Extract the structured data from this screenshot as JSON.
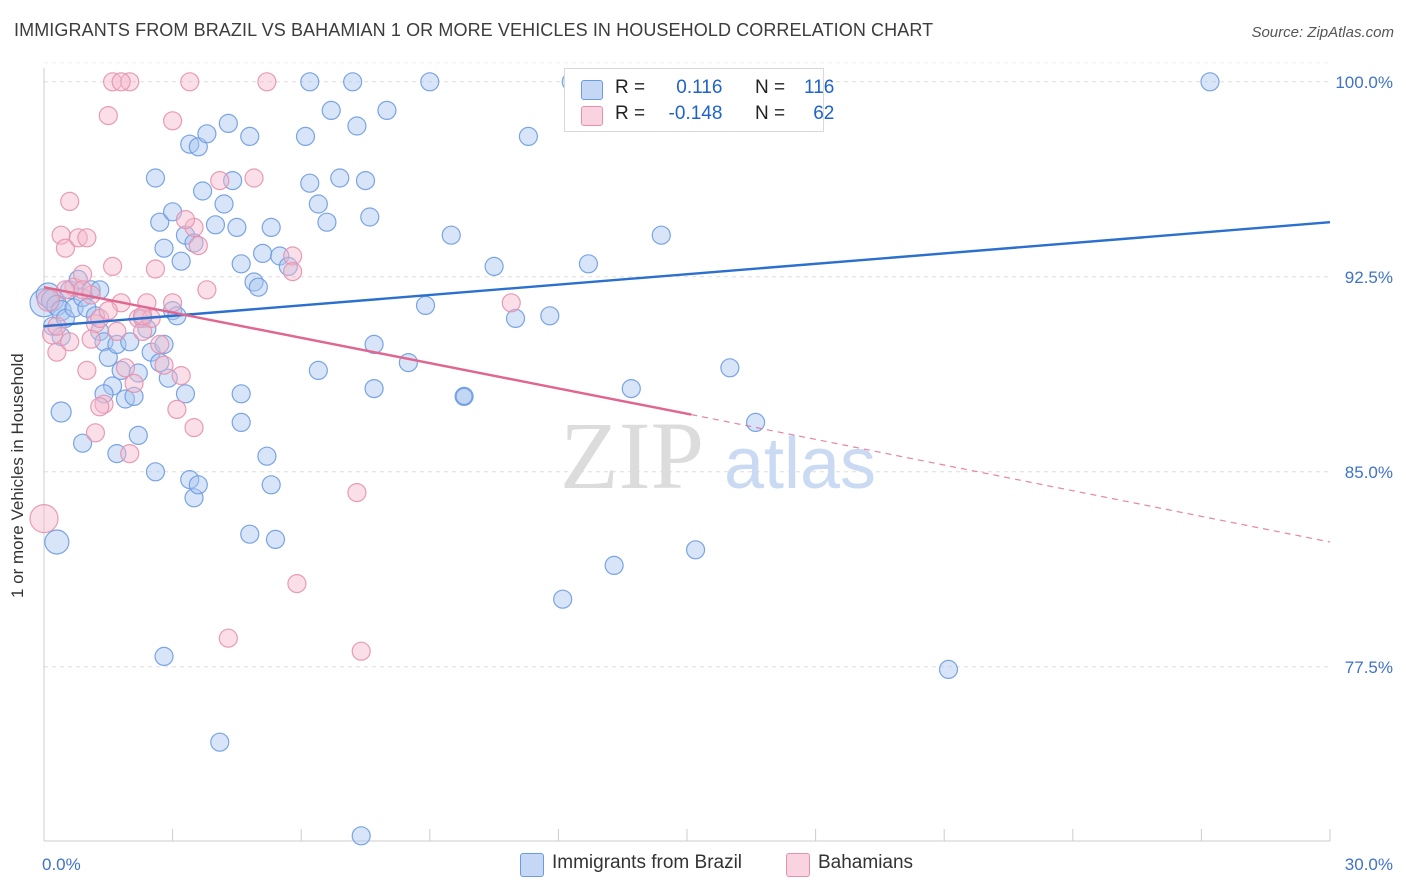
{
  "title": "IMMIGRANTS FROM BRAZIL VS BAHAMIAN 1 OR MORE VEHICLES IN HOUSEHOLD CORRELATION CHART",
  "source": "Source: ZipAtlas.com",
  "watermark": {
    "zip": "ZIP",
    "atlas": "atlas"
  },
  "legend": {
    "rows": [
      {
        "r_label": "R =",
        "r_value": "0.116",
        "n_label": "N =",
        "n_value": "116",
        "color": "#a9c6f0"
      },
      {
        "r_label": "R =",
        "r_value": "-0.148",
        "n_label": "N =",
        "n_value": "62",
        "color": "#f4b8cc"
      }
    ]
  },
  "bottom_legend": [
    "Immigrants from Brazil",
    "Bahamians"
  ],
  "colors": {
    "brazil_fill": "#a9c6f0",
    "brazil_stroke": "#6d9be0",
    "brazil_line": "#2b6fcf",
    "bahamian_fill": "#f4b8cc",
    "bahamian_stroke": "#e591ae",
    "bahamian_line": "#e0668f",
    "axis_text": "#3f73c8",
    "grid": "#dddddd"
  },
  "chart_data": {
    "type": "scatter",
    "title": "IMMIGRANTS FROM BRAZIL VS BAHAMIAN 1 OR MORE VEHICLES IN HOUSEHOLD CORRELATION CHART",
    "xlabel": "",
    "ylabel": "1 or more Vehicles in Household",
    "xlim": [
      0,
      30
    ],
    "ylim": [
      70.8,
      100.8
    ],
    "x_tick_labels": [
      "0.0%",
      "30.0%"
    ],
    "y_ticks": [
      77.5,
      85.0,
      92.5,
      100.0
    ],
    "y_tick_labels": [
      "77.5%",
      "85.0%",
      "92.5%",
      "100.0%"
    ],
    "grid": true,
    "legend_position": "top-center",
    "series": [
      {
        "name": "Immigrants from Brazil",
        "r": 0.116,
        "n": 116,
        "trend": {
          "x": [
            0,
            30
          ],
          "y": [
            90.6,
            94.6
          ],
          "style": "solid"
        },
        "points": [
          [
            0.0,
            91.5,
            14
          ],
          [
            0.1,
            91.8,
            12
          ],
          [
            0.2,
            91.6,
            11
          ],
          [
            0.3,
            91.4,
            10
          ],
          [
            0.4,
            91.2,
            10
          ],
          [
            0.2,
            90.6,
            9
          ],
          [
            0.5,
            90.9,
            9
          ],
          [
            0.6,
            92.0,
            9
          ],
          [
            0.7,
            91.3,
            9
          ],
          [
            0.8,
            92.4,
            9
          ],
          [
            0.9,
            91.7,
            9
          ],
          [
            1.0,
            91.3,
            9
          ],
          [
            1.1,
            92.0,
            9
          ],
          [
            1.3,
            92.0,
            9
          ],
          [
            1.2,
            91.0,
            9
          ],
          [
            0.4,
            90.2,
            9
          ],
          [
            1.3,
            90.4,
            9
          ],
          [
            1.4,
            90.0,
            9
          ],
          [
            1.5,
            89.4,
            9
          ],
          [
            1.6,
            88.3,
            9
          ],
          [
            1.4,
            88.0,
            9
          ],
          [
            1.7,
            89.9,
            9
          ],
          [
            1.8,
            88.9,
            9
          ],
          [
            1.9,
            87.8,
            9
          ],
          [
            2.0,
            90.0,
            9
          ],
          [
            2.1,
            87.9,
            9
          ],
          [
            2.2,
            88.8,
            9
          ],
          [
            2.3,
            90.9,
            9
          ],
          [
            2.4,
            90.5,
            9
          ],
          [
            2.5,
            89.6,
            9
          ],
          [
            2.6,
            85.0,
            9
          ],
          [
            2.7,
            89.2,
            9
          ],
          [
            2.8,
            89.9,
            9
          ],
          [
            2.9,
            88.6,
            9
          ],
          [
            3.0,
            91.2,
            9
          ],
          [
            3.1,
            91.0,
            9
          ],
          [
            3.3,
            88.0,
            9
          ],
          [
            3.4,
            84.7,
            9
          ],
          [
            3.5,
            84.0,
            9
          ],
          [
            3.6,
            84.5,
            9
          ],
          [
            0.4,
            87.3,
            10
          ],
          [
            0.9,
            86.1,
            9
          ],
          [
            1.7,
            85.7,
            9
          ],
          [
            2.2,
            86.4,
            9
          ],
          [
            0.3,
            82.3,
            12
          ],
          [
            2.7,
            94.6,
            9
          ],
          [
            2.6,
            96.3,
            9
          ],
          [
            2.8,
            93.6,
            9
          ],
          [
            3.0,
            95.0,
            9
          ],
          [
            3.2,
            93.1,
            9
          ],
          [
            3.3,
            94.1,
            9
          ],
          [
            3.4,
            97.6,
            9
          ],
          [
            3.6,
            97.5,
            9
          ],
          [
            3.8,
            98.0,
            9
          ],
          [
            3.7,
            95.8,
            9
          ],
          [
            3.5,
            93.8,
            9
          ],
          [
            4.2,
            95.3,
            9
          ],
          [
            4.3,
            98.4,
            9
          ],
          [
            4.0,
            94.5,
            9
          ],
          [
            4.8,
            97.9,
            9
          ],
          [
            4.4,
            96.2,
            9
          ],
          [
            4.5,
            94.4,
            9
          ],
          [
            4.6,
            93.0,
            9
          ],
          [
            4.9,
            92.3,
            9
          ],
          [
            5.0,
            92.1,
            9
          ],
          [
            5.1,
            93.4,
            9
          ],
          [
            5.5,
            93.3,
            9
          ],
          [
            5.3,
            94.4,
            9
          ],
          [
            5.7,
            92.9,
            9
          ],
          [
            6.1,
            97.9,
            9
          ],
          [
            6.2,
            96.1,
            9
          ],
          [
            6.4,
            95.3,
            9
          ],
          [
            6.6,
            94.6,
            9
          ],
          [
            6.9,
            96.3,
            9
          ],
          [
            6.7,
            98.9,
            9
          ],
          [
            7.3,
            98.3,
            9
          ],
          [
            7.5,
            96.2,
            9
          ],
          [
            8.0,
            98.9,
            9
          ],
          [
            7.6,
            94.8,
            9
          ],
          [
            9.0,
            100.0,
            9
          ],
          [
            7.2,
            100.0,
            9
          ],
          [
            9.5,
            94.1,
            9
          ],
          [
            10.5,
            92.9,
            9
          ],
          [
            11.0,
            90.9,
            9
          ],
          [
            11.3,
            97.9,
            9
          ],
          [
            11.8,
            91.0,
            9
          ],
          [
            12.3,
            100.0,
            9
          ],
          [
            12.7,
            93.0,
            9
          ],
          [
            14.4,
            94.1,
            9
          ],
          [
            4.6,
            88.0,
            9
          ],
          [
            5.2,
            85.6,
            9
          ],
          [
            5.3,
            84.5,
            9
          ],
          [
            4.8,
            82.6,
            9
          ],
          [
            5.4,
            82.4,
            9
          ],
          [
            4.6,
            86.9,
            9
          ],
          [
            6.4,
            88.9,
            9
          ],
          [
            7.7,
            89.9,
            9
          ],
          [
            7.7,
            88.2,
            9
          ],
          [
            8.5,
            89.2,
            9
          ],
          [
            8.9,
            91.4,
            9
          ],
          [
            9.8,
            87.9,
            9
          ],
          [
            9.8,
            87.9,
            8
          ],
          [
            13.7,
            88.2,
            9
          ],
          [
            16.0,
            89.0,
            9
          ],
          [
            16.6,
            86.9,
            9
          ],
          [
            13.3,
            81.4,
            9
          ],
          [
            15.2,
            82.0,
            9
          ],
          [
            12.1,
            80.1,
            9
          ],
          [
            21.1,
            77.4,
            9
          ],
          [
            2.8,
            77.9,
            9
          ],
          [
            4.1,
            74.6,
            9
          ],
          [
            7.4,
            71.0,
            9
          ],
          [
            6.2,
            100.0,
            9
          ],
          [
            16.6,
            100.0,
            9
          ],
          [
            27.2,
            100.0,
            9
          ],
          [
            13.7,
            100.0,
            9
          ]
        ]
      },
      {
        "name": "Bahamians",
        "r": -0.148,
        "n": 62,
        "trend": {
          "x": [
            0,
            15.1
          ],
          "y": [
            92.1,
            87.2
          ],
          "style": "solid"
        },
        "trend_extension": {
          "x": [
            15.1,
            30
          ],
          "y": [
            87.2,
            82.3
          ],
          "style": "dashed"
        },
        "points": [
          [
            0.0,
            83.2,
            14
          ],
          [
            0.1,
            91.6,
            11
          ],
          [
            0.2,
            90.3,
            10
          ],
          [
            0.3,
            90.6,
            9
          ],
          [
            0.3,
            89.6,
            9
          ],
          [
            0.4,
            94.1,
            9
          ],
          [
            0.5,
            93.6,
            9
          ],
          [
            0.6,
            95.4,
            9
          ],
          [
            0.7,
            92.1,
            9
          ],
          [
            0.8,
            94.0,
            9
          ],
          [
            0.9,
            92.6,
            9
          ],
          [
            1.0,
            94.0,
            9
          ],
          [
            1.1,
            91.8,
            9
          ],
          [
            1.2,
            90.7,
            9
          ],
          [
            1.3,
            90.9,
            9
          ],
          [
            1.1,
            90.1,
            9
          ],
          [
            1.0,
            88.9,
            9
          ],
          [
            1.4,
            87.6,
            9
          ],
          [
            1.3,
            87.5,
            9
          ],
          [
            1.2,
            86.5,
            9
          ],
          [
            1.6,
            92.9,
            9
          ],
          [
            1.7,
            90.4,
            9
          ],
          [
            1.8,
            91.5,
            9
          ],
          [
            1.9,
            89.0,
            9
          ],
          [
            2.0,
            85.7,
            9
          ],
          [
            2.1,
            88.4,
            9
          ],
          [
            2.2,
            90.9,
            9
          ],
          [
            2.3,
            90.4,
            9
          ],
          [
            2.4,
            91.5,
            9
          ],
          [
            2.5,
            90.9,
            9
          ],
          [
            2.6,
            92.8,
            9
          ],
          [
            2.7,
            89.9,
            9
          ],
          [
            2.8,
            89.1,
            9
          ],
          [
            3.0,
            91.5,
            9
          ],
          [
            3.1,
            87.4,
            9
          ],
          [
            3.2,
            88.7,
            9
          ],
          [
            3.5,
            86.7,
            9
          ],
          [
            3.6,
            93.7,
            9
          ],
          [
            3.5,
            94.4,
            9
          ],
          [
            3.8,
            92.0,
            9
          ],
          [
            4.9,
            96.3,
            9
          ],
          [
            4.1,
            96.2,
            9
          ],
          [
            3.3,
            94.7,
            9
          ],
          [
            1.5,
            98.7,
            9
          ],
          [
            3.0,
            98.5,
            9
          ],
          [
            1.6,
            100.0,
            9
          ],
          [
            2.0,
            100.0,
            9
          ],
          [
            3.4,
            100.0,
            9
          ],
          [
            5.2,
            100.0,
            9
          ],
          [
            1.8,
            100.0,
            9
          ],
          [
            5.8,
            93.3,
            9
          ],
          [
            5.8,
            92.7,
            9
          ],
          [
            7.3,
            84.2,
            9
          ],
          [
            5.9,
            80.7,
            9
          ],
          [
            4.3,
            78.6,
            9
          ],
          [
            7.4,
            78.1,
            9
          ],
          [
            10.9,
            91.5,
            9
          ],
          [
            0.6,
            90.0,
            9
          ],
          [
            0.9,
            92.0,
            9
          ],
          [
            1.5,
            91.2,
            9
          ],
          [
            0.5,
            92.0,
            9
          ],
          [
            2.3,
            91.0,
            9
          ]
        ]
      }
    ]
  }
}
